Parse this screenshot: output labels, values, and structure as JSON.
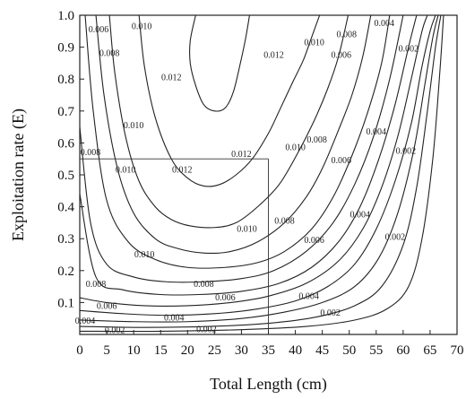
{
  "chart_data": {
    "type": "line",
    "title": "",
    "xlabel": "Total Length (cm)",
    "ylabel": "Exploitation rate (E)",
    "xlim": [
      0,
      70
    ],
    "ylim": [
      0.0,
      1.0
    ],
    "x_ticks": [
      "0",
      "5",
      "10",
      "15",
      "20",
      "25",
      "30",
      "35",
      "40",
      "45",
      "50",
      "55",
      "60",
      "65",
      "70"
    ],
    "y_ticks": [
      "0.1",
      "0.2",
      "0.3",
      "0.4",
      "0.5",
      "0.6",
      "0.7",
      "0.8",
      "0.9",
      "1.0"
    ],
    "grid": false,
    "legend": "none",
    "reference_lines": [
      {
        "x": [
          0,
          35
        ],
        "y": [
          0.55,
          0.55
        ]
      },
      {
        "x": [
          35,
          35
        ],
        "y": [
          0.0,
          0.55
        ]
      }
    ],
    "contours": [
      {
        "level": 0.012,
        "x": [
          21.5,
          20.5,
          20.5,
          21.5,
          23,
          25,
          27,
          28.5,
          29.8,
          30.8,
          31.5
        ],
        "y": [
          1.0,
          0.92,
          0.85,
          0.78,
          0.72,
          0.7,
          0.71,
          0.76,
          0.85,
          0.93,
          1.0
        ]
      },
      {
        "level": 0.012,
        "x": [
          11,
          12,
          14,
          17,
          20,
          23,
          26,
          29,
          32,
          35,
          37,
          39.5,
          41.5,
          43,
          44.5
        ],
        "y": [
          1.0,
          0.84,
          0.68,
          0.55,
          0.49,
          0.465,
          0.47,
          0.5,
          0.55,
          0.63,
          0.7,
          0.79,
          0.86,
          0.93,
          1.0
        ]
      },
      {
        "level": 0.01,
        "x": [
          5.5,
          6.5,
          8.5,
          11,
          14,
          17,
          20.5,
          25,
          29,
          33,
          37,
          40.5,
          43.5,
          46,
          48,
          49.8
        ],
        "y": [
          1.0,
          0.82,
          0.62,
          0.48,
          0.4,
          0.36,
          0.34,
          0.335,
          0.35,
          0.4,
          0.47,
          0.57,
          0.67,
          0.77,
          0.87,
          1.0
        ]
      },
      {
        "level": 0.01,
        "x": [
          3,
          4.5,
          7,
          10,
          14,
          18,
          23,
          28,
          33,
          38,
          42,
          45,
          48,
          50.5,
          52.5,
          54
        ],
        "y": [
          1.0,
          0.75,
          0.52,
          0.38,
          0.3,
          0.27,
          0.255,
          0.26,
          0.29,
          0.35,
          0.43,
          0.52,
          0.64,
          0.75,
          0.87,
          1.0
        ]
      },
      {
        "level": 0.008,
        "x": [
          1,
          2.5,
          5,
          9,
          14,
          20,
          27,
          33,
          38,
          43,
          47,
          50.5,
          53.5,
          56,
          57.5
        ],
        "y": [
          1.0,
          0.7,
          0.42,
          0.29,
          0.235,
          0.21,
          0.21,
          0.225,
          0.26,
          0.33,
          0.43,
          0.56,
          0.7,
          0.85,
          1.0
        ]
      },
      {
        "level": 0.008,
        "x": [
          0,
          2,
          5,
          10,
          16,
          23,
          30,
          36,
          42,
          47,
          51,
          54.5,
          57.5,
          60
        ],
        "y": [
          0.65,
          0.35,
          0.22,
          0.18,
          0.165,
          0.165,
          0.175,
          0.2,
          0.26,
          0.35,
          0.47,
          0.62,
          0.8,
          1.0
        ]
      },
      {
        "level": 0.006,
        "x": [
          0,
          3,
          8,
          15,
          22,
          30,
          37,
          43,
          48,
          52,
          55.5,
          58.5,
          61,
          62.5
        ],
        "y": [
          0.44,
          0.18,
          0.14,
          0.125,
          0.125,
          0.135,
          0.16,
          0.21,
          0.29,
          0.4,
          0.55,
          0.72,
          0.9,
          1.0
        ]
      },
      {
        "level": 0.006,
        "x": [
          0,
          5,
          12,
          20,
          28,
          35,
          42,
          48,
          52.5,
          56,
          59,
          61.5,
          63.5,
          64.5
        ],
        "y": [
          0.115,
          0.1,
          0.09,
          0.09,
          0.1,
          0.12,
          0.16,
          0.23,
          0.33,
          0.46,
          0.62,
          0.8,
          0.95,
          1.0
        ]
      },
      {
        "level": 0.004,
        "x": [
          0,
          8,
          16,
          25,
          33,
          40,
          46,
          51,
          55,
          58.5,
          61.5,
          63.5,
          65,
          66
        ],
        "y": [
          0.075,
          0.065,
          0.06,
          0.065,
          0.08,
          0.105,
          0.15,
          0.22,
          0.33,
          0.48,
          0.66,
          0.84,
          0.95,
          1.0
        ]
      },
      {
        "level": 0.004,
        "x": [
          0,
          10,
          20,
          30,
          38,
          45,
          51,
          55.5,
          59,
          62,
          64,
          65.5,
          66.5
        ],
        "y": [
          0.045,
          0.04,
          0.04,
          0.05,
          0.07,
          0.1,
          0.15,
          0.24,
          0.38,
          0.58,
          0.78,
          0.93,
          1.0
        ]
      },
      {
        "level": 0.002,
        "x": [
          0,
          12,
          24,
          35,
          44,
          51,
          56,
          60,
          62.5,
          64.5,
          66,
          67
        ],
        "y": [
          0.025,
          0.022,
          0.025,
          0.035,
          0.055,
          0.09,
          0.15,
          0.28,
          0.46,
          0.7,
          0.9,
          1.0
        ]
      },
      {
        "level": 0.002,
        "x": [
          0,
          15,
          30,
          42,
          51,
          57,
          61,
          63.5,
          65.5,
          66.8,
          67.5
        ],
        "y": [
          0.01,
          0.01,
          0.015,
          0.025,
          0.045,
          0.08,
          0.15,
          0.3,
          0.55,
          0.82,
          1.0
        ]
      }
    ],
    "contour_labels": [
      {
        "text": "0.006",
        "x": 3.5,
        "y": 0.955
      },
      {
        "text": "0.010",
        "x": 11.5,
        "y": 0.965
      },
      {
        "text": "0.008",
        "x": 5.5,
        "y": 0.88
      },
      {
        "text": "0.012",
        "x": 17,
        "y": 0.805
      },
      {
        "text": "0.010",
        "x": 10,
        "y": 0.655
      },
      {
        "text": "0.008",
        "x": 2,
        "y": 0.57
      },
      {
        "text": "0.010",
        "x": 8.5,
        "y": 0.515
      },
      {
        "text": "0.012",
        "x": 19,
        "y": 0.515
      },
      {
        "text": "0.012",
        "x": 30,
        "y": 0.565
      },
      {
        "text": "0.012",
        "x": 36,
        "y": 0.875
      },
      {
        "text": "0.010",
        "x": 43.5,
        "y": 0.915
      },
      {
        "text": "0.008",
        "x": 49.5,
        "y": 0.94
      },
      {
        "text": "0.006",
        "x": 48.5,
        "y": 0.875
      },
      {
        "text": "0.004",
        "x": 56.5,
        "y": 0.975
      },
      {
        "text": "0.002",
        "x": 61,
        "y": 0.895
      },
      {
        "text": "0.010",
        "x": 40,
        "y": 0.585
      },
      {
        "text": "0.008",
        "x": 44,
        "y": 0.61
      },
      {
        "text": "0.006",
        "x": 48.5,
        "y": 0.545
      },
      {
        "text": "0.004",
        "x": 55,
        "y": 0.635
      },
      {
        "text": "0.002",
        "x": 60.5,
        "y": 0.575
      },
      {
        "text": "0.010",
        "x": 31,
        "y": 0.33
      },
      {
        "text": "0.008",
        "x": 38,
        "y": 0.355
      },
      {
        "text": "0.006",
        "x": 43.5,
        "y": 0.295
      },
      {
        "text": "0.004",
        "x": 52,
        "y": 0.375
      },
      {
        "text": "0.002",
        "x": 58.5,
        "y": 0.305
      },
      {
        "text": "0.010",
        "x": 12,
        "y": 0.25
      },
      {
        "text": "0.008",
        "x": 3,
        "y": 0.158
      },
      {
        "text": "0.008",
        "x": 23,
        "y": 0.158
      },
      {
        "text": "0.006",
        "x": 27,
        "y": 0.115
      },
      {
        "text": "0.006",
        "x": 5,
        "y": 0.088
      },
      {
        "text": "0.004",
        "x": 42.5,
        "y": 0.12
      },
      {
        "text": "0.002",
        "x": 46.5,
        "y": 0.068
      },
      {
        "text": "0.004",
        "x": 1,
        "y": 0.042
      },
      {
        "text": "0.004",
        "x": 17.5,
        "y": 0.052
      },
      {
        "text": "0.002",
        "x": 6.5,
        "y": 0.012
      },
      {
        "text": "0.002",
        "x": 23.5,
        "y": 0.016
      }
    ]
  }
}
